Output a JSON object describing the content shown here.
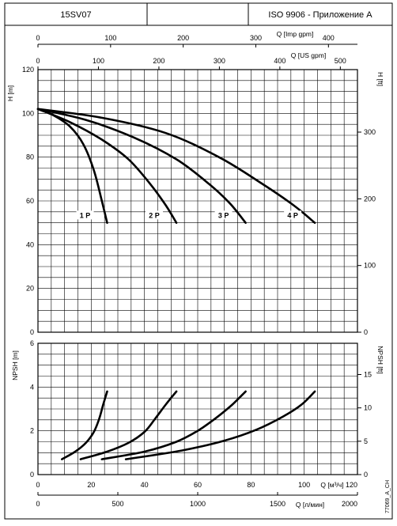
{
  "header": {
    "model": "15SV07",
    "middle": "",
    "standard": "ISO 9906 - Приложение A"
  },
  "footnote": "77069_A_CH",
  "chart_data": [
    {
      "type": "line",
      "name": "head",
      "x_unit": "Q [м³/ч]",
      "xlim": [
        0,
        120
      ],
      "ylim": [
        0,
        120
      ],
      "ylabel_left": "H [m]",
      "ylabel_right": "H [ft]",
      "yticks_left": [
        0,
        20,
        40,
        60,
        80,
        100,
        120
      ],
      "yticks_right": [
        0,
        100,
        200,
        300
      ],
      "grid": true,
      "series": [
        {
          "name": "1 P",
          "points": [
            [
              0,
              102
            ],
            [
              6,
              99
            ],
            [
              12,
              94
            ],
            [
              17,
              86
            ],
            [
              21,
              74
            ],
            [
              24,
              60
            ],
            [
              26,
              50
            ]
          ]
        },
        {
          "name": "2 P",
          "points": [
            [
              0,
              102
            ],
            [
              12,
              96
            ],
            [
              24,
              88
            ],
            [
              34,
              79
            ],
            [
              42,
              68
            ],
            [
              48,
              58
            ],
            [
              52,
              50
            ]
          ]
        },
        {
          "name": "3 P",
          "points": [
            [
              0,
              102
            ],
            [
              18,
              97
            ],
            [
              36,
              89
            ],
            [
              52,
              79
            ],
            [
              64,
              68
            ],
            [
              72,
              59
            ],
            [
              78,
              50
            ]
          ]
        },
        {
          "name": "4 P",
          "points": [
            [
              0,
              102
            ],
            [
              24,
              98
            ],
            [
              48,
              91
            ],
            [
              68,
              80
            ],
            [
              84,
              68
            ],
            [
              96,
              58
            ],
            [
              104,
              50
            ]
          ]
        }
      ],
      "series_labels_at_y": 53
    },
    {
      "type": "line",
      "name": "npsh",
      "xlim": [
        0,
        120
      ],
      "ylim": [
        0,
        6
      ],
      "ylabel_left": "NPSH [m]",
      "ylabel_right": "NPSH [ft]",
      "yticks_left": [
        0,
        2,
        4,
        6
      ],
      "yticks_right": [
        0,
        5,
        10,
        15
      ],
      "grid": true,
      "series": [
        {
          "name": "1 P",
          "points": [
            [
              9,
              0.7
            ],
            [
              14,
              1.05
            ],
            [
              18,
              1.45
            ],
            [
              21,
              1.95
            ],
            [
              23,
              2.55
            ],
            [
              24.5,
              3.2
            ],
            [
              26,
              3.8
            ]
          ]
        },
        {
          "name": "2 P",
          "points": [
            [
              16,
              0.7
            ],
            [
              26,
              1.05
            ],
            [
              34,
              1.45
            ],
            [
              40,
              1.95
            ],
            [
              44,
              2.55
            ],
            [
              48,
              3.2
            ],
            [
              52,
              3.8
            ]
          ]
        },
        {
          "name": "3 P",
          "points": [
            [
              24,
              0.7
            ],
            [
              40,
              1.05
            ],
            [
              52,
              1.5
            ],
            [
              60,
              2.0
            ],
            [
              67,
              2.6
            ],
            [
              73,
              3.2
            ],
            [
              78,
              3.8
            ]
          ]
        },
        {
          "name": "4 P",
          "points": [
            [
              33,
              0.7
            ],
            [
              54,
              1.1
            ],
            [
              70,
              1.55
            ],
            [
              82,
              2.05
            ],
            [
              92,
              2.65
            ],
            [
              99,
              3.2
            ],
            [
              104,
              3.8
            ]
          ]
        }
      ]
    }
  ],
  "axes": {
    "imp_gpm": {
      "label": "Q [Imp gpm]",
      "ticks": [
        0,
        100,
        200,
        300,
        400
      ]
    },
    "us_gpm": {
      "label": "Q [US gpm]",
      "ticks": [
        0,
        100,
        200,
        300,
        400,
        500
      ]
    },
    "m3h": {
      "label": "Q [м³/ч]",
      "ticks": [
        0,
        20,
        40,
        60,
        80,
        100,
        120
      ]
    },
    "lmin": {
      "label": "Q [л/мин]",
      "ticks": [
        0,
        500,
        1000,
        1500,
        2000
      ]
    }
  }
}
